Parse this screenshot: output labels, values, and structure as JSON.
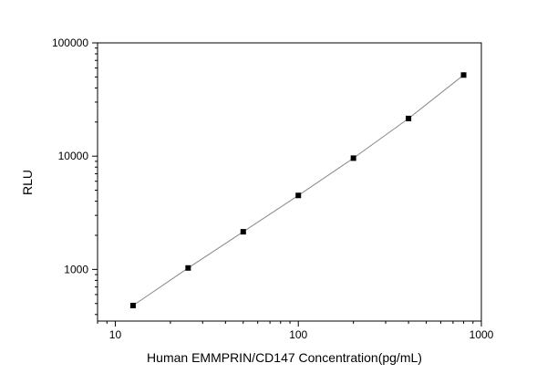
{
  "chart_data": {
    "type": "scatter",
    "title": "",
    "xlabel": "Human EMMPRIN/CD147 Concentration(pg/mL)",
    "ylabel": "RLU",
    "x_scale": "log",
    "y_scale": "log",
    "xlim": [
      8,
      1000
    ],
    "ylim": [
      350,
      100000
    ],
    "x_ticks": [
      10,
      100,
      1000
    ],
    "x_tick_labels": [
      "10",
      "100",
      "1000"
    ],
    "y_ticks": [
      1000,
      10000,
      100000
    ],
    "y_tick_labels": [
      "1000",
      "10000",
      "100000"
    ],
    "grid": false,
    "legend": "none",
    "series": [
      {
        "x": [
          12.5,
          25,
          50,
          100,
          200,
          400,
          800
        ],
        "y": [
          480,
          1030,
          2150,
          4500,
          9600,
          21500,
          52000
        ],
        "marker": "square",
        "marker_color": "#000000",
        "fit_line": true,
        "line_color": "#888888"
      }
    ]
  }
}
